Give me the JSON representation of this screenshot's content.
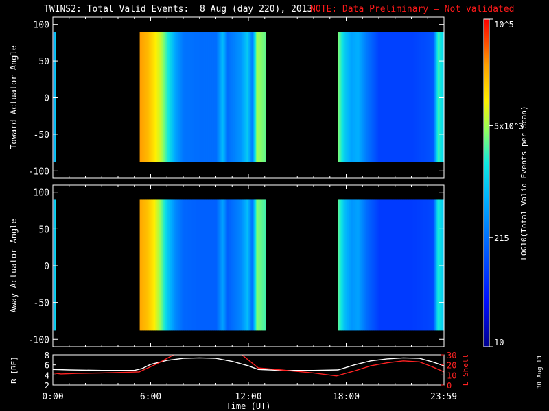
{
  "title": {
    "main": "TWINS2: Total Valid Events:  8 Aug (day 220), 2013",
    "note": "NOTE: Data Preliminary — Not validated"
  },
  "side_date": "30 Aug 13",
  "colors": {
    "background": "#000000",
    "note_red": "#ff1a1a",
    "line_white": "#ffffff",
    "line_red": "#ff2222"
  },
  "colorbar": {
    "label": "LOG10(Total Valid Events per Scan)",
    "ticks": [
      {
        "label": "10",
        "value": 10
      },
      {
        "label": "215",
        "value": 215
      },
      {
        "label": "5x10^3",
        "value": 5000
      },
      {
        "label": "10^5",
        "value": 100000
      }
    ],
    "scale": "log",
    "range": [
      10,
      100000
    ]
  },
  "chart_data": [
    {
      "type": "heatmap",
      "ylabel": "Toward Actuator Angle",
      "ylim": [
        -110,
        110
      ],
      "yticks": [
        100,
        50,
        0,
        -50,
        -100
      ],
      "xlim": [
        0,
        24
      ],
      "data_blocks": [
        {
          "start": 0.03,
          "end": 0.12,
          "profile": [
            {
              "t": 0.03,
              "v": 2.3
            },
            {
              "t": 0.08,
              "v": 2.6
            },
            {
              "t": 0.1,
              "v": 3.2
            },
            {
              "t": 0.12,
              "v": 3.3
            }
          ]
        },
        {
          "start": 5.33,
          "end": 13.0,
          "profile": [
            {
              "t": 5.33,
              "v": 4.45
            },
            {
              "t": 5.8,
              "v": 4.3
            },
            {
              "t": 6.2,
              "v": 4.05
            },
            {
              "t": 6.6,
              "v": 3.8
            },
            {
              "t": 7.0,
              "v": 3.3
            },
            {
              "t": 7.5,
              "v": 2.7
            },
            {
              "t": 8.0,
              "v": 2.35
            },
            {
              "t": 9.0,
              "v": 2.3
            },
            {
              "t": 10.0,
              "v": 2.3
            },
            {
              "t": 10.4,
              "v": 2.9
            },
            {
              "t": 10.7,
              "v": 2.3
            },
            {
              "t": 11.5,
              "v": 2.6
            },
            {
              "t": 11.9,
              "v": 3.0
            },
            {
              "t": 12.2,
              "v": 2.4
            },
            {
              "t": 12.5,
              "v": 3.7
            },
            {
              "t": 13.0,
              "v": 3.5
            }
          ]
        },
        {
          "start": 17.5,
          "end": 24.0,
          "profile": [
            {
              "t": 17.5,
              "v": 3.55
            },
            {
              "t": 17.9,
              "v": 3.0
            },
            {
              "t": 18.3,
              "v": 2.7
            },
            {
              "t": 18.7,
              "v": 2.8
            },
            {
              "t": 19.2,
              "v": 2.4
            },
            {
              "t": 20.0,
              "v": 1.95
            },
            {
              "t": 22.0,
              "v": 1.95
            },
            {
              "t": 23.3,
              "v": 2.1
            },
            {
              "t": 23.6,
              "v": 3.4
            },
            {
              "t": 24.0,
              "v": 3.0
            }
          ]
        }
      ]
    },
    {
      "type": "heatmap",
      "ylabel": "Away Actuator Angle",
      "ylim": [
        -110,
        110
      ],
      "yticks": [
        100,
        50,
        0,
        -50,
        -100
      ],
      "xlim": [
        0,
        24
      ],
      "data_blocks": [
        {
          "start": 0.03,
          "end": 0.12,
          "profile": [
            {
              "t": 0.03,
              "v": 2.4
            },
            {
              "t": 0.08,
              "v": 2.7
            },
            {
              "t": 0.1,
              "v": 3.3
            },
            {
              "t": 0.12,
              "v": 3.4
            }
          ]
        },
        {
          "start": 5.33,
          "end": 13.0,
          "profile": [
            {
              "t": 5.33,
              "v": 4.4
            },
            {
              "t": 5.8,
              "v": 4.25
            },
            {
              "t": 6.2,
              "v": 4.0
            },
            {
              "t": 6.6,
              "v": 3.6
            },
            {
              "t": 7.0,
              "v": 3.0
            },
            {
              "t": 7.5,
              "v": 2.5
            },
            {
              "t": 8.0,
              "v": 2.25
            },
            {
              "t": 9.0,
              "v": 2.2
            },
            {
              "t": 10.0,
              "v": 2.2
            },
            {
              "t": 10.4,
              "v": 2.7
            },
            {
              "t": 10.7,
              "v": 2.2
            },
            {
              "t": 11.5,
              "v": 2.5
            },
            {
              "t": 11.9,
              "v": 2.9
            },
            {
              "t": 12.2,
              "v": 2.3
            },
            {
              "t": 12.5,
              "v": 3.6
            },
            {
              "t": 13.0,
              "v": 3.4
            }
          ]
        },
        {
          "start": 17.5,
          "end": 24.0,
          "profile": [
            {
              "t": 17.5,
              "v": 3.45
            },
            {
              "t": 17.9,
              "v": 2.9
            },
            {
              "t": 18.3,
              "v": 2.6
            },
            {
              "t": 18.7,
              "v": 2.7
            },
            {
              "t": 19.2,
              "v": 2.3
            },
            {
              "t": 20.0,
              "v": 1.9
            },
            {
              "t": 22.0,
              "v": 1.9
            },
            {
              "t": 23.3,
              "v": 2.0
            },
            {
              "t": 23.6,
              "v": 3.3
            },
            {
              "t": 24.0,
              "v": 2.9
            }
          ]
        }
      ]
    },
    {
      "type": "line",
      "ylabel": "R [RE]",
      "ylabel_right": "L Shell",
      "xlabel": "Time (UT)",
      "xticks": [
        {
          "value": 0,
          "label": "0:00"
        },
        {
          "value": 6,
          "label": "6:00"
        },
        {
          "value": 12,
          "label": "12:00"
        },
        {
          "value": 18,
          "label": "18:00"
        },
        {
          "value": 23.98,
          "label": "23:59"
        }
      ],
      "ylim": [
        2,
        8
      ],
      "yticks": [
        2,
        4,
        6,
        8
      ],
      "ylim_right": [
        0,
        30
      ],
      "yticks_right": [
        0,
        10,
        20,
        30
      ],
      "xlim": [
        0,
        24
      ],
      "series": [
        {
          "axis": "left",
          "color": "#ffffff",
          "points": [
            [
              0,
              5.1
            ],
            [
              1,
              5.0
            ],
            [
              3,
              4.9
            ],
            [
              5,
              4.9
            ],
            [
              5.5,
              5.3
            ],
            [
              6,
              6.1
            ],
            [
              7,
              6.9
            ],
            [
              8,
              7.3
            ],
            [
              9,
              7.4
            ],
            [
              10,
              7.3
            ],
            [
              11,
              6.7
            ],
            [
              12,
              5.8
            ],
            [
              12.6,
              5.1
            ],
            [
              14,
              4.9
            ],
            [
              16,
              4.9
            ],
            [
              17.5,
              5.0
            ],
            [
              18.5,
              6.0
            ],
            [
              19.5,
              6.8
            ],
            [
              20.5,
              7.2
            ],
            [
              21.5,
              7.4
            ],
            [
              22.5,
              7.3
            ],
            [
              23.3,
              6.6
            ],
            [
              24,
              5.8
            ]
          ]
        },
        {
          "axis": "right",
          "color": "#ff2222",
          "points": [
            [
              0,
              12
            ],
            [
              0.5,
              11
            ],
            [
              1.5,
              11.5
            ],
            [
              3,
              12
            ],
            [
              5.3,
              13
            ],
            [
              6.5,
              22
            ],
            [
              7.4,
              32
            ]
          ]
        },
        {
          "axis": "right",
          "color": "#ff2222",
          "points": [
            [
              11.6,
              32
            ],
            [
              12.6,
              17
            ],
            [
              14,
              15
            ],
            [
              16,
              12
            ],
            [
              17.4,
              9
            ],
            [
              18.5,
              14
            ],
            [
              19.5,
              19
            ],
            [
              20.5,
              22
            ],
            [
              21.5,
              24
            ],
            [
              22.5,
              23
            ],
            [
              23.3,
              18
            ],
            [
              24,
              13
            ]
          ]
        }
      ]
    }
  ]
}
